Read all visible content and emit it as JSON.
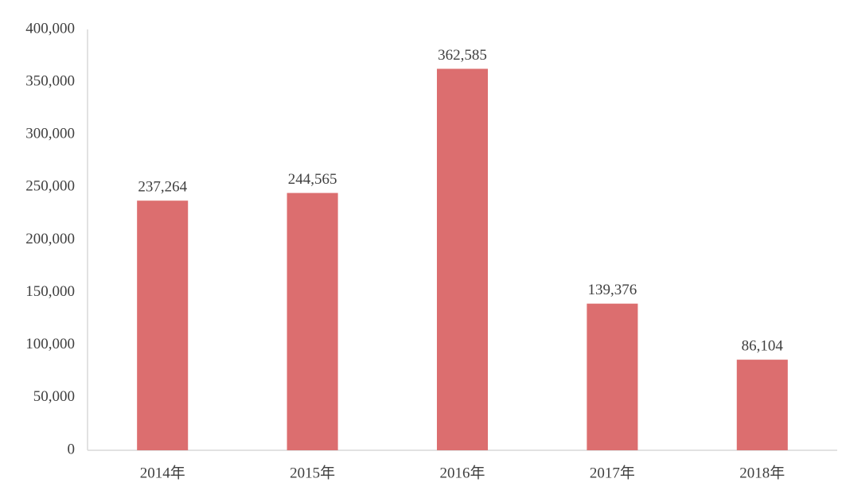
{
  "chart_data": {
    "type": "bar",
    "categories": [
      "2014年",
      "2015年",
      "2016年",
      "2017年",
      "2018年"
    ],
    "values": [
      237264,
      244565,
      362585,
      139376,
      86104
    ],
    "value_labels": [
      "237,264",
      "244,565",
      "362,585",
      "139,376",
      "86,104"
    ],
    "color": "#dc6e6f",
    "ylim": [
      0,
      400000
    ],
    "yticks": [
      0,
      {
        "value": 50000,
        "label": "50,000"
      },
      {
        "value": 100000,
        "label": "100,000"
      },
      {
        "value": 150000,
        "label": "150,000"
      },
      {
        "value": 200000,
        "label": "200,000"
      },
      {
        "value": 250000,
        "label": "250,000"
      },
      {
        "value": 300000,
        "label": "300,000"
      },
      {
        "value": 350000,
        "label": "350,000"
      },
      {
        "value": 400000,
        "label": "400,000"
      }
    ],
    "grid": false
  }
}
